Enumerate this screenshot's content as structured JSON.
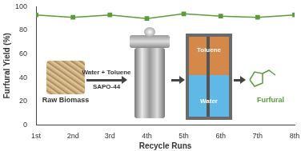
{
  "chart_data": {
    "type": "line",
    "x_label": "Recycle Runs",
    "y_label": "Furfural Yield (%)",
    "categories": [
      "1st",
      "2nd",
      "3rd",
      "4th",
      "5th",
      "6th",
      "7th",
      "8th"
    ],
    "values": [
      93,
      91,
      93,
      90,
      94,
      92,
      91,
      93
    ],
    "color": "#5b9b3c",
    "marker": "square",
    "ylim": [
      0,
      100
    ],
    "yticks": [
      0,
      20,
      40,
      60,
      80,
      100
    ],
    "grid": false,
    "annotations": [
      "Raw Biomass",
      "Water + Toluene",
      "SAPO-44",
      "Toluene",
      "Water",
      "Furfural"
    ]
  }
}
